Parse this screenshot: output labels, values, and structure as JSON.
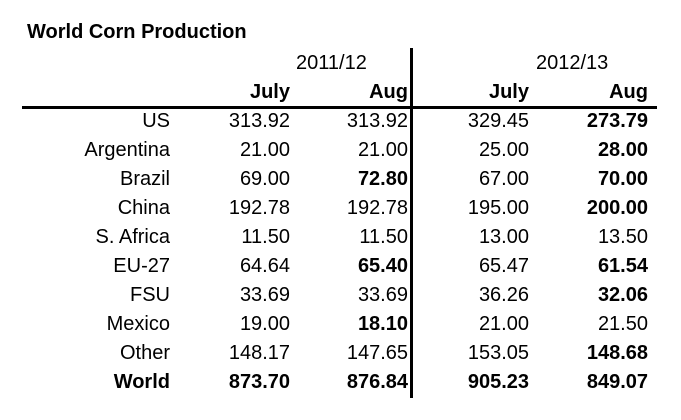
{
  "title": "World Corn Production",
  "periods": [
    "2011/12",
    "2012/13"
  ],
  "subheaders": [
    "July",
    "Aug",
    "July",
    "Aug"
  ],
  "rows": [
    {
      "country": "US",
      "values": [
        "313.92",
        "313.92",
        "329.45",
        "273.79"
      ],
      "bold": [
        false,
        false,
        false,
        true
      ]
    },
    {
      "country": "Argentina",
      "values": [
        "21.00",
        "21.00",
        "25.00",
        "28.00"
      ],
      "bold": [
        false,
        false,
        false,
        true
      ]
    },
    {
      "country": "Brazil",
      "values": [
        "69.00",
        "72.80",
        "67.00",
        "70.00"
      ],
      "bold": [
        false,
        true,
        false,
        true
      ]
    },
    {
      "country": "China",
      "values": [
        "192.78",
        "192.78",
        "195.00",
        "200.00"
      ],
      "bold": [
        false,
        false,
        false,
        true
      ]
    },
    {
      "country": "S. Africa",
      "values": [
        "11.50",
        "11.50",
        "13.00",
        "13.50"
      ],
      "bold": [
        false,
        false,
        false,
        false
      ]
    },
    {
      "country": "EU-27",
      "values": [
        "64.64",
        "65.40",
        "65.47",
        "61.54"
      ],
      "bold": [
        false,
        true,
        false,
        true
      ]
    },
    {
      "country": "FSU",
      "values": [
        "33.69",
        "33.69",
        "36.26",
        "32.06"
      ],
      "bold": [
        false,
        false,
        false,
        true
      ]
    },
    {
      "country": "Mexico",
      "values": [
        "19.00",
        "18.10",
        "21.00",
        "21.50"
      ],
      "bold": [
        false,
        true,
        false,
        false
      ]
    },
    {
      "country": "Other",
      "values": [
        "148.17",
        "147.65",
        "153.05",
        "148.68"
      ],
      "bold": [
        false,
        false,
        false,
        true
      ]
    },
    {
      "country": "World",
      "values": [
        "873.70",
        "876.84",
        "905.23",
        "849.07"
      ],
      "bold": [
        true,
        true,
        true,
        true
      ]
    }
  ]
}
